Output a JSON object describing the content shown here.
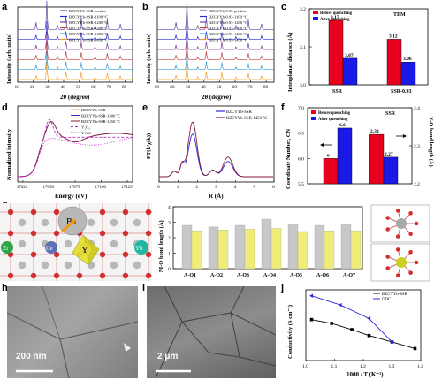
{
  "panel_letters": [
    "a",
    "b",
    "c",
    "d",
    "e",
    "f",
    "g",
    "h",
    "i",
    "j"
  ],
  "panel_a": {
    "ylabel": "Intensity (arb. units)",
    "xlabel": "2θ (degree)",
    "xticks": [
      "10",
      "20",
      "30",
      "40",
      "50",
      "60",
      "70",
      "80"
    ],
    "legend": [
      "BZCYYb-SSR pristine",
      "BZCYYb-SSR-1100 °C",
      "BZCYYb-SSR-1200 °C",
      "BZCYYb-SSR-1300 °C",
      "BZCYYb-SSR-1400 °C",
      "BZCYYb-SSR-1450 °C"
    ]
  },
  "panel_b": {
    "ylabel": "Intensity (arb. units)",
    "xlabel": "2θ (degree)",
    "xticks": [
      "10",
      "20",
      "30",
      "40",
      "50",
      "60",
      "70",
      "80"
    ],
    "legend": [
      "BZCYYb-0.93-pristine",
      "BZCYYb-0.93-1100 °C",
      "BZCYYb-0.93-1200 °C",
      "BZCYYb-0.93-1300 °C",
      "BZCYYb-0.93-1400 °C",
      "BZCYYb-0.93-1450 °C"
    ]
  },
  "panel_d": {
    "ylabel": "Normalized intensity",
    "xlabel": "Energy (eV)",
    "xticks": [
      "17025",
      "17050",
      "17075",
      "17100",
      "17125"
    ],
    "legend": [
      "BZCYYb-SSR",
      "BZCYYb-SSR-1300 °C",
      "BZCYYb-SSR-1450 °C",
      "Y₂O₃",
      "Y foil"
    ]
  },
  "panel_e": {
    "ylabel": "FT(k³χ(k))",
    "xlabel": "R (Å)",
    "xticks": [
      "0",
      "1",
      "2",
      "3",
      "4",
      "5",
      "6"
    ],
    "legend": [
      "BZCYYb-SSR",
      "BZCYYb-SSR-1450 °C"
    ]
  },
  "panel_g": {
    "atoms": [
      "Ba",
      "Ce",
      "Y",
      "Zr",
      "Yb"
    ],
    "ylabel": "M-O bond length (Å)"
  },
  "panel_h": {
    "scalebar": "200 nm"
  },
  "panel_i": {
    "scalebar": "2 μm"
  },
  "colors": {
    "before": "#e8001c",
    "after": "#1a1ae6",
    "gray_bar": "#c8c8c8",
    "yellow_bar": "#f0ec7a"
  },
  "chart_data": [
    {
      "panel": "c",
      "type": "bar",
      "ylabel": "Interplanar distance (Å)",
      "annotation": "TEM",
      "categories": [
        "SSR",
        "SSR-0.93"
      ],
      "series": [
        {
          "name": "Before quenching",
          "values": [
            3.17,
            3.12
          ]
        },
        {
          "name": "After quenching",
          "values": [
            3.07,
            3.06
          ]
        }
      ],
      "ylim": [
        3.0,
        3.2
      ],
      "yticks": [
        "3.0",
        "3.1",
        "3.2"
      ],
      "data_labels": [
        [
          "3.17",
          "3.12"
        ],
        [
          "3.07",
          "3.06"
        ]
      ]
    },
    {
      "panel": "f",
      "type": "bar",
      "ylabel": "Coordinate Number, CN",
      "ylabel_right": "Y-O bond length (Å)",
      "annotation": "SSR",
      "series": [
        {
          "name": "Before quenching",
          "values": [
            6,
            2.33
          ]
        },
        {
          "name": "After quenching",
          "values": [
            6.6,
            2.27
          ]
        }
      ],
      "ylim_left": [
        5.5,
        7.0
      ],
      "ylim_right": [
        2.2,
        2.4
      ],
      "yticks_left": [
        "5.5",
        "6.0",
        "6.5",
        "7.0"
      ],
      "yticks_right": [
        "2.2",
        "2.3",
        "2.4"
      ],
      "data_labels": [
        "6",
        "6.6",
        "2.33",
        "2.27"
      ]
    },
    {
      "panel": "g",
      "type": "bar",
      "ylabel": "M-O bond length (Å)",
      "categories": [
        "A-O1",
        "A-O2",
        "A-O3",
        "A-O4",
        "A-O5",
        "A-O6",
        "A-O7"
      ],
      "series": [
        {
          "values": [
            2.8,
            2.7,
            2.8,
            3.2,
            2.9,
            2.8,
            2.9
          ]
        },
        {
          "values": [
            2.45,
            2.5,
            2.55,
            2.6,
            2.4,
            2.45,
            2.45
          ]
        }
      ],
      "ylim": [
        0,
        4
      ],
      "yticks": [
        "0",
        "1",
        "2",
        "3",
        "4"
      ]
    },
    {
      "panel": "j",
      "type": "line",
      "xlabel": "1000 / T (K⁻¹)",
      "ylabel": "Conductivity (S cm⁻¹)",
      "series": [
        {
          "name": "BZCYYb-SSR",
          "x": [
            1.02,
            1.09,
            1.16,
            1.22,
            1.3,
            1.38
          ],
          "y": [
            0.021,
            0.018,
            0.014,
            0.011,
            0.0085,
            0.0065
          ]
        },
        {
          "name": "GDC",
          "x": [
            1.02,
            1.12,
            1.22,
            1.3
          ],
          "y": [
            0.055,
            0.038,
            0.022,
            0.0085
          ]
        }
      ],
      "xlim": [
        1.0,
        1.4
      ],
      "xticks": [
        "1.0",
        "1.1",
        "1.2",
        "1.3",
        "1.4"
      ]
    }
  ]
}
